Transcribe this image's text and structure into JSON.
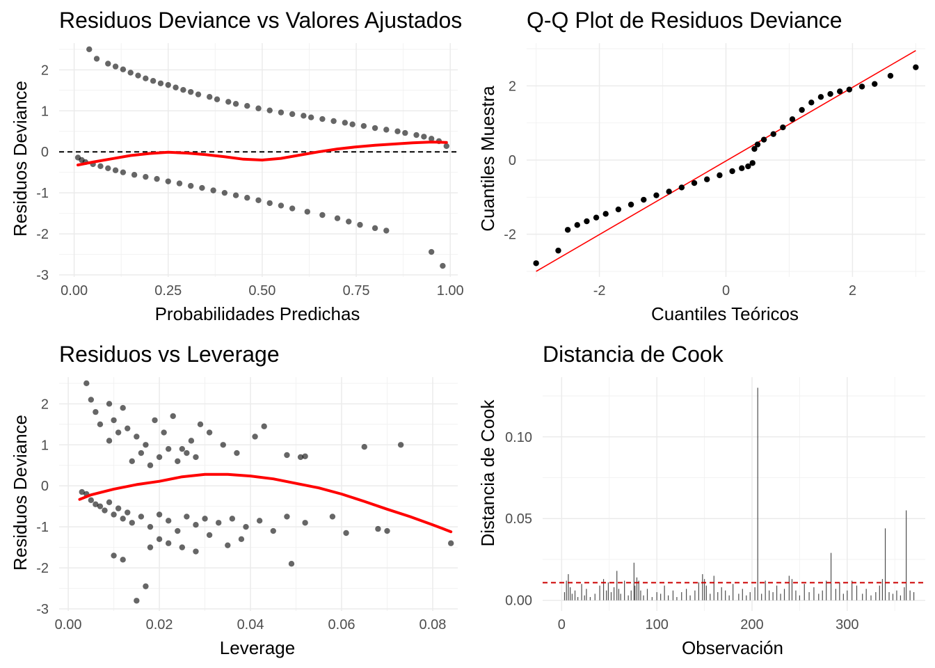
{
  "chart_data": [
    {
      "id": "fitted",
      "type": "scatter",
      "title": "Residuos Deviance vs Valores Ajustados",
      "xlabel": "Probabilidades Predichas",
      "ylabel": "Residuos Deviance",
      "xlim": [
        -0.04,
        1.02
      ],
      "ylim": [
        -3.05,
        2.65
      ],
      "xticks": [
        0,
        0.25,
        0.5,
        0.75,
        1
      ],
      "xtick_labels": [
        "0.00",
        "0.25",
        "0.50",
        "0.75",
        "1.00"
      ],
      "yticks": [
        -3,
        -2,
        -1,
        0,
        1,
        2
      ],
      "ytick_labels": [
        "-3",
        "-2",
        "-1",
        "0",
        "1",
        "2"
      ],
      "grid": true,
      "hline": {
        "y": 0,
        "style": "dashed",
        "color": "#000000"
      },
      "point_color": "#000000",
      "point_opacity": 0.6,
      "points": {
        "x": [
          0.04,
          0.06,
          0.09,
          0.11,
          0.13,
          0.15,
          0.17,
          0.19,
          0.21,
          0.23,
          0.25,
          0.27,
          0.29,
          0.31,
          0.33,
          0.36,
          0.38,
          0.41,
          0.43,
          0.46,
          0.49,
          0.52,
          0.55,
          0.58,
          0.61,
          0.63,
          0.66,
          0.69,
          0.72,
          0.74,
          0.77,
          0.8,
          0.83,
          0.86,
          0.88,
          0.91,
          0.93,
          0.95,
          0.97,
          0.99,
          0.01,
          0.02,
          0.03,
          0.05,
          0.07,
          0.09,
          0.11,
          0.13,
          0.16,
          0.19,
          0.22,
          0.25,
          0.28,
          0.31,
          0.34,
          0.37,
          0.4,
          0.43,
          0.46,
          0.49,
          0.52,
          0.55,
          0.58,
          0.62,
          0.66,
          0.7,
          0.73,
          0.76,
          0.8,
          0.83,
          0.95,
          0.98
        ],
        "y": [
          2.5,
          2.27,
          2.15,
          2.08,
          2.01,
          1.93,
          1.86,
          1.79,
          1.73,
          1.67,
          1.63,
          1.57,
          1.51,
          1.46,
          1.4,
          1.34,
          1.28,
          1.22,
          1.17,
          1.12,
          1.06,
          1.01,
          0.96,
          0.92,
          0.88,
          0.84,
          0.8,
          0.75,
          0.71,
          0.67,
          0.63,
          0.58,
          0.54,
          0.5,
          0.46,
          0.41,
          0.37,
          0.32,
          0.26,
          0.14,
          -0.14,
          -0.2,
          -0.25,
          -0.3,
          -0.35,
          -0.4,
          -0.45,
          -0.5,
          -0.56,
          -0.61,
          -0.66,
          -0.72,
          -0.77,
          -0.83,
          -0.88,
          -0.94,
          -1.0,
          -1.06,
          -1.12,
          -1.18,
          -1.25,
          -1.31,
          -1.38,
          -1.46,
          -1.54,
          -1.62,
          -1.7,
          -1.78,
          -1.86,
          -1.92,
          -2.44,
          -2.78
        ]
      },
      "smooth": {
        "color": "#ff0000",
        "x": [
          0.01,
          0.05,
          0.1,
          0.15,
          0.2,
          0.25,
          0.3,
          0.35,
          0.4,
          0.45,
          0.5,
          0.55,
          0.6,
          0.65,
          0.7,
          0.75,
          0.8,
          0.85,
          0.9,
          0.95,
          0.99
        ],
        "y": [
          -0.32,
          -0.25,
          -0.17,
          -0.09,
          -0.04,
          -0.01,
          -0.03,
          -0.07,
          -0.12,
          -0.18,
          -0.2,
          -0.16,
          -0.08,
          0.0,
          0.07,
          0.12,
          0.16,
          0.19,
          0.22,
          0.24,
          0.23
        ]
      }
    },
    {
      "id": "qq",
      "type": "scatter",
      "title": "Q-Q Plot de Residuos Deviance",
      "xlabel": "Cuantiles Teóricos",
      "ylabel": "Cuantiles Muestra",
      "xlim": [
        -3.15,
        3.15
      ],
      "ylim": [
        -3.15,
        3.15
      ],
      "xticks": [
        -2,
        0,
        2
      ],
      "xtick_labels": [
        "-2",
        "0",
        "2"
      ],
      "yticks": [
        -2,
        0,
        2
      ],
      "ytick_labels": [
        "-2",
        "0",
        "2"
      ],
      "grid": true,
      "point_color": "#000000",
      "point_opacity": 1,
      "points": {
        "x": [
          -3.0,
          -2.65,
          -2.5,
          -2.35,
          -2.2,
          -2.05,
          -1.9,
          -1.7,
          -1.5,
          -1.3,
          -1.1,
          -0.9,
          -0.7,
          -0.5,
          -0.3,
          -0.1,
          0.1,
          0.25,
          0.35,
          0.42,
          0.45,
          0.5,
          0.6,
          0.75,
          0.9,
          1.05,
          1.2,
          1.35,
          1.5,
          1.65,
          1.8,
          1.95,
          2.15,
          2.35,
          2.6,
          3.0
        ],
        "y": [
          -2.78,
          -2.44,
          -1.88,
          -1.75,
          -1.65,
          -1.55,
          -1.45,
          -1.33,
          -1.2,
          -1.07,
          -0.95,
          -0.85,
          -0.74,
          -0.62,
          -0.52,
          -0.41,
          -0.3,
          -0.22,
          -0.17,
          -0.08,
          0.3,
          0.42,
          0.55,
          0.7,
          0.88,
          1.1,
          1.35,
          1.55,
          1.7,
          1.78,
          1.85,
          1.9,
          1.98,
          2.05,
          2.27,
          2.5
        ]
      },
      "ref_line": {
        "color": "#ff0000",
        "x": [
          -3.0,
          3.0
        ],
        "y": [
          -3.0,
          2.95
        ]
      }
    },
    {
      "id": "leverage",
      "type": "scatter",
      "title": "Residuos vs Leverage",
      "xlabel": "Leverage",
      "ylabel": "Residuos Deviance",
      "xlim": [
        -0.002,
        0.0855
      ],
      "ylim": [
        -3.05,
        2.65
      ],
      "xticks": [
        0,
        0.02,
        0.04,
        0.06,
        0.08
      ],
      "xtick_labels": [
        "0.00",
        "0.02",
        "0.04",
        "0.06",
        "0.08"
      ],
      "yticks": [
        -3,
        -2,
        -1,
        0,
        1,
        2
      ],
      "ytick_labels": [
        "-3",
        "-2",
        "-1",
        "0",
        "1",
        "2"
      ],
      "grid": true,
      "point_color": "#000000",
      "point_opacity": 0.6,
      "points": {
        "x": [
          0.004,
          0.005,
          0.006,
          0.007,
          0.009,
          0.01,
          0.011,
          0.012,
          0.009,
          0.013,
          0.015,
          0.017,
          0.019,
          0.021,
          0.023,
          0.025,
          0.027,
          0.029,
          0.031,
          0.034,
          0.037,
          0.041,
          0.043,
          0.048,
          0.051,
          0.052,
          0.065,
          0.073,
          0.014,
          0.016,
          0.018,
          0.02,
          0.022,
          0.024,
          0.026,
          0.028,
          0.003,
          0.004,
          0.005,
          0.006,
          0.007,
          0.008,
          0.009,
          0.01,
          0.011,
          0.012,
          0.013,
          0.014,
          0.016,
          0.018,
          0.02,
          0.022,
          0.024,
          0.026,
          0.028,
          0.03,
          0.033,
          0.036,
          0.039,
          0.042,
          0.045,
          0.048,
          0.052,
          0.058,
          0.061,
          0.068,
          0.07,
          0.084,
          0.01,
          0.012,
          0.015,
          0.017,
          0.018,
          0.02,
          0.022,
          0.025,
          0.028,
          0.031,
          0.035,
          0.038,
          0.049
        ],
        "y": [
          2.5,
          2.1,
          1.8,
          1.5,
          2.0,
          1.6,
          1.3,
          1.9,
          1.1,
          1.4,
          1.2,
          1.0,
          1.6,
          1.3,
          1.7,
          0.9,
          1.1,
          1.5,
          1.3,
          1.0,
          0.8,
          1.2,
          1.45,
          0.75,
          0.7,
          0.72,
          0.95,
          1.0,
          0.6,
          0.8,
          0.5,
          0.7,
          0.9,
          0.6,
          0.8,
          0.7,
          -0.15,
          -0.2,
          -0.35,
          -0.45,
          -0.5,
          -0.6,
          -0.4,
          -0.7,
          -0.55,
          -0.8,
          -0.65,
          -0.9,
          -0.75,
          -1.0,
          -0.7,
          -0.85,
          -1.1,
          -0.75,
          -0.95,
          -0.8,
          -0.9,
          -0.8,
          -1.0,
          -0.85,
          -1.1,
          -0.75,
          -0.9,
          -0.75,
          -1.15,
          -1.05,
          -1.1,
          -1.4,
          -1.7,
          -1.8,
          -2.8,
          -2.45,
          -1.5,
          -1.3,
          -1.4,
          -1.5,
          -1.6,
          -1.2,
          -1.45,
          -1.3,
          -1.9
        ],
        "note": ""
      },
      "smooth": {
        "color": "#ff0000",
        "x": [
          0.0025,
          0.005,
          0.01,
          0.015,
          0.02,
          0.025,
          0.03,
          0.035,
          0.04,
          0.045,
          0.05,
          0.055,
          0.06,
          0.065,
          0.07,
          0.075,
          0.08,
          0.084
        ],
        "y": [
          -0.33,
          -0.22,
          -0.08,
          0.03,
          0.11,
          0.22,
          0.28,
          0.28,
          0.24,
          0.17,
          0.06,
          -0.05,
          -0.2,
          -0.38,
          -0.57,
          -0.75,
          -0.95,
          -1.12
        ]
      }
    },
    {
      "id": "cook",
      "type": "bar",
      "title": "Distancia de Cook",
      "xlabel": "Observación",
      "ylabel": "Distancia de Cook",
      "xlim": [
        -20,
        382
      ],
      "ylim": [
        -0.0065,
        0.1365
      ],
      "xticks": [
        0,
        100,
        200,
        300
      ],
      "xtick_labels": [
        "0",
        "100",
        "200",
        "300"
      ],
      "yticks": [
        0,
        0.05,
        0.1
      ],
      "ytick_labels": [
        "0.00",
        "0.05",
        "0.10"
      ],
      "grid": true,
      "hline": {
        "y": 0.0108,
        "style": "dashed",
        "color": "#cc0000"
      },
      "bar_color": "#4d4d4d",
      "bars": {
        "x": [
          3,
          5,
          7,
          9,
          11,
          14,
          17,
          21,
          24,
          26,
          30,
          35,
          40,
          44,
          47,
          49,
          52,
          55,
          58,
          60,
          62,
          66,
          70,
          73,
          76,
          77,
          79,
          81,
          83,
          86,
          90,
          95,
          100,
          104,
          108,
          112,
          117,
          121,
          126,
          131,
          135,
          140,
          144,
          148,
          150,
          152,
          156,
          160,
          164,
          168,
          172,
          176,
          180,
          186,
          190,
          194,
          198,
          203,
          206,
          210,
          214,
          218,
          222,
          226,
          230,
          234,
          239,
          242,
          246,
          250,
          255,
          260,
          265,
          270,
          274,
          278,
          283,
          288,
          292,
          296,
          300,
          305,
          310,
          316,
          320,
          325,
          330,
          334,
          337,
          340,
          344,
          348,
          352,
          356,
          360,
          362,
          366,
          370
        ],
        "values": [
          0.005,
          0.012,
          0.016,
          0.008,
          0.004,
          0.006,
          0.002,
          0.01,
          0.003,
          0.007,
          0.002,
          0.004,
          0.009,
          0.013,
          0.006,
          0.011,
          0.005,
          0.008,
          0.018,
          0.007,
          0.004,
          0.012,
          0.003,
          0.006,
          0.023,
          0.009,
          0.014,
          0.012,
          0.006,
          0.003,
          0.007,
          0.002,
          0.005,
          0.004,
          0.009,
          0.003,
          0.006,
          0.002,
          0.005,
          0.007,
          0.003,
          0.006,
          0.011,
          0.016,
          0.013,
          0.009,
          0.004,
          0.015,
          0.005,
          0.008,
          0.006,
          0.003,
          0.01,
          0.004,
          0.007,
          0.003,
          0.005,
          0.008,
          0.13,
          0.004,
          0.012,
          0.006,
          0.005,
          0.009,
          0.004,
          0.007,
          0.015,
          0.013,
          0.006,
          0.003,
          0.01,
          0.005,
          0.008,
          0.004,
          0.006,
          0.012,
          0.029,
          0.007,
          0.011,
          0.004,
          0.006,
          0.012,
          0.009,
          0.004,
          0.007,
          0.003,
          0.005,
          0.009,
          0.013,
          0.044,
          0.005,
          0.004,
          0.006,
          0.003,
          0.008,
          0.055,
          0.006,
          0.005
        ]
      }
    }
  ]
}
